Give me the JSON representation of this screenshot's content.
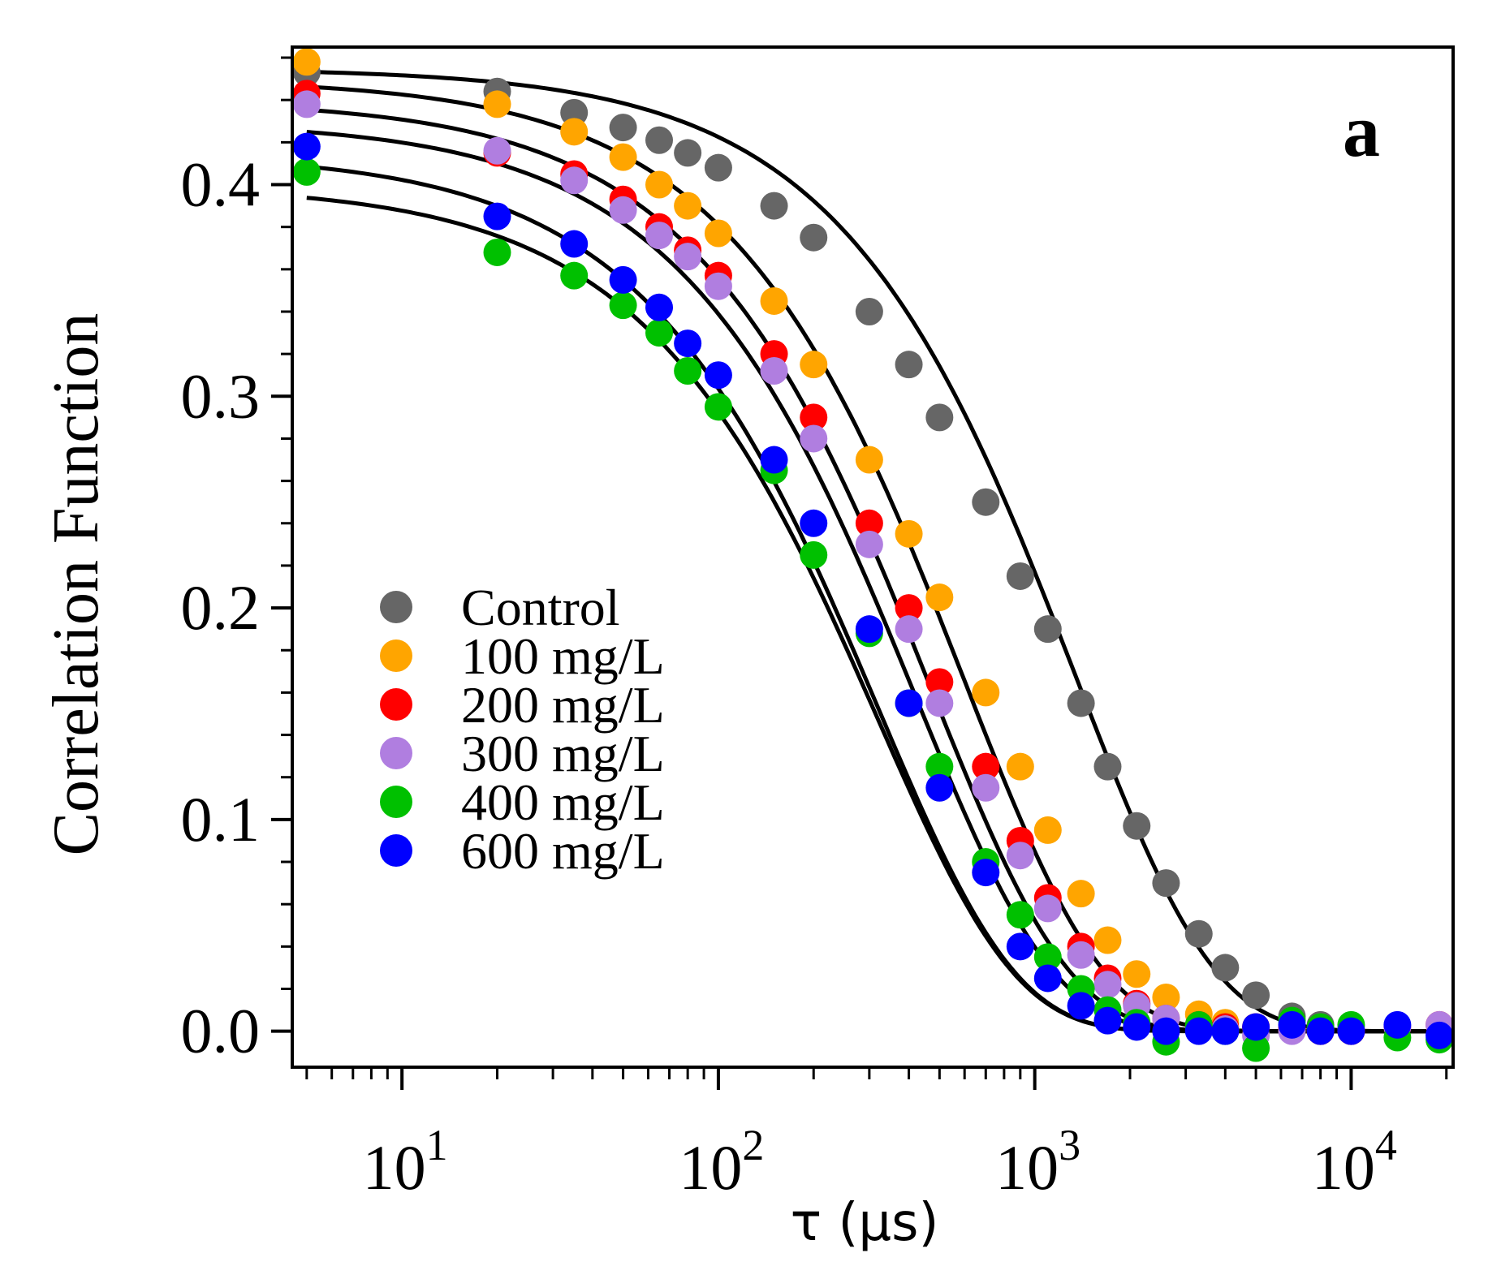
{
  "chart_data": {
    "type": "scatter",
    "panel_label": "a",
    "xlabel": "τ (μs)",
    "ylabel": "Correlation Function",
    "xscale": "log",
    "xlim": [
      4.5,
      21000
    ],
    "ylim": [
      -0.017,
      0.465
    ],
    "x_ticks": [
      {
        "value": 10,
        "base": "10",
        "exp": "1"
      },
      {
        "value": 100,
        "base": "10",
        "exp": "2"
      },
      {
        "value": 1000,
        "base": "10",
        "exp": "3"
      },
      {
        "value": 10000,
        "base": "10",
        "exp": "4"
      }
    ],
    "y_ticks": [
      {
        "value": 0.0,
        "label": "0.0"
      },
      {
        "value": 0.1,
        "label": "0.1"
      },
      {
        "value": 0.2,
        "label": "0.2"
      },
      {
        "value": 0.3,
        "label": "0.3"
      },
      {
        "value": 0.4,
        "label": "0.4"
      }
    ],
    "grid": false,
    "legend_position": "lower-left",
    "fit_line_color": "#000000",
    "series": [
      {
        "name": "Control",
        "color": "#666666",
        "A": 0.455,
        "tau": 1350,
        "beta": 1.0,
        "x": [
          5,
          20,
          35,
          50,
          65,
          80,
          100,
          150,
          200,
          300,
          400,
          500,
          700,
          900,
          1100,
          1400,
          1700,
          2100,
          2600,
          3300,
          4000,
          5000,
          6500,
          8000
        ],
        "y": [
          0.453,
          0.444,
          0.434,
          0.427,
          0.421,
          0.415,
          0.408,
          0.39,
          0.375,
          0.34,
          0.315,
          0.29,
          0.25,
          0.215,
          0.19,
          0.155,
          0.125,
          0.097,
          0.07,
          0.046,
          0.03,
          0.017,
          0.007,
          0.003
        ]
      },
      {
        "name": "100 mg/L",
        "color": "#ffa500",
        "A": 0.45,
        "tau": 600,
        "beta": 1.0,
        "x": [
          5,
          20,
          35,
          50,
          65,
          80,
          100,
          150,
          200,
          300,
          400,
          500,
          700,
          900,
          1100,
          1400,
          1700,
          2100,
          2600,
          3300,
          4000,
          5000,
          6500,
          8000,
          10000
        ],
        "y": [
          0.458,
          0.438,
          0.425,
          0.413,
          0.4,
          0.39,
          0.377,
          0.345,
          0.315,
          0.27,
          0.235,
          0.205,
          0.16,
          0.125,
          0.095,
          0.065,
          0.043,
          0.027,
          0.016,
          0.008,
          0.004,
          0.002,
          0.001,
          0.0,
          0.0
        ]
      },
      {
        "name": "200 mg/L",
        "color": "#ff0000",
        "A": 0.44,
        "tau": 470,
        "beta": 1.0,
        "x": [
          5,
          20,
          35,
          50,
          65,
          80,
          100,
          150,
          200,
          300,
          400,
          500,
          700,
          900,
          1100,
          1400,
          1700,
          2100,
          2600,
          3300,
          4000,
          5000,
          6500,
          8000,
          10000,
          14000,
          19000
        ],
        "y": [
          0.443,
          0.415,
          0.405,
          0.393,
          0.38,
          0.369,
          0.357,
          0.32,
          0.29,
          0.24,
          0.2,
          0.165,
          0.125,
          0.09,
          0.063,
          0.04,
          0.025,
          0.013,
          0.006,
          0.003,
          0.002,
          0.002,
          0.001,
          0.0,
          0.0,
          0.002,
          0.003
        ]
      },
      {
        "name": "300 mg/L",
        "color": "#b07ee0",
        "A": 0.43,
        "tau": 420,
        "beta": 1.0,
        "x": [
          5,
          20,
          35,
          50,
          65,
          80,
          100,
          150,
          200,
          300,
          400,
          500,
          700,
          900,
          1100,
          1400,
          1700,
          2100,
          2600,
          3300,
          4000,
          5000,
          6500,
          8000,
          10000,
          14000,
          19000
        ],
        "y": [
          0.438,
          0.416,
          0.402,
          0.388,
          0.376,
          0.366,
          0.352,
          0.312,
          0.28,
          0.23,
          0.19,
          0.155,
          0.115,
          0.083,
          0.058,
          0.036,
          0.022,
          0.012,
          0.006,
          0.002,
          0.001,
          -0.002,
          0.0,
          0.001,
          0.002,
          0.002,
          0.003
        ]
      },
      {
        "name": "400 mg/L",
        "color": "#00c000",
        "A": 0.4,
        "tau": 320,
        "beta": 1.0,
        "x": [
          5,
          20,
          35,
          50,
          65,
          80,
          100,
          150,
          200,
          300,
          400,
          500,
          700,
          900,
          1100,
          1400,
          1700,
          2100,
          2600,
          3300,
          4000,
          5000,
          6500,
          8000,
          10000,
          14000,
          19000
        ],
        "y": [
          0.406,
          0.368,
          0.357,
          0.343,
          0.33,
          0.312,
          0.295,
          0.265,
          0.225,
          0.188,
          0.155,
          0.125,
          0.08,
          0.055,
          0.035,
          0.02,
          0.01,
          0.004,
          -0.005,
          0.003,
          0.0,
          -0.008,
          0.005,
          0.002,
          0.003,
          -0.003,
          -0.004
        ]
      },
      {
        "name": "600 mg/L",
        "color": "#0000ff",
        "A": 0.415,
        "tau": 320,
        "beta": 1.0,
        "x": [
          5,
          20,
          35,
          50,
          65,
          80,
          100,
          150,
          200,
          300,
          400,
          500,
          700,
          900,
          1100,
          1400,
          1700,
          2100,
          2600,
          3300,
          4000,
          5000,
          6500,
          8000,
          10000,
          14000,
          19000
        ],
        "y": [
          0.418,
          0.385,
          0.372,
          0.355,
          0.342,
          0.325,
          0.31,
          0.27,
          0.24,
          0.19,
          0.155,
          0.115,
          0.075,
          0.04,
          0.025,
          0.012,
          0.005,
          0.002,
          0.0,
          0.0,
          0.0,
          0.002,
          0.003,
          0.0,
          0.0,
          0.003,
          -0.002
        ]
      }
    ]
  }
}
